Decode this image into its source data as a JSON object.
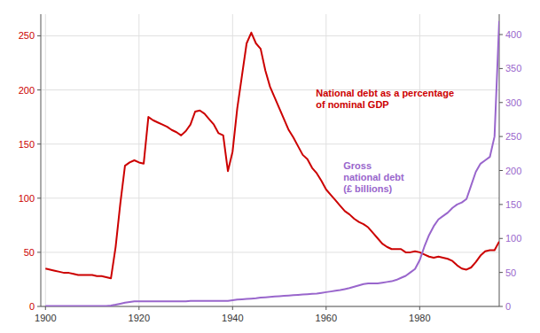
{
  "chart_data": {
    "type": "line",
    "x": [
      1900,
      1901,
      1902,
      1903,
      1904,
      1905,
      1906,
      1907,
      1908,
      1909,
      1910,
      1911,
      1912,
      1913,
      1914,
      1915,
      1916,
      1917,
      1918,
      1919,
      1920,
      1921,
      1922,
      1923,
      1924,
      1925,
      1926,
      1927,
      1928,
      1929,
      1930,
      1931,
      1932,
      1933,
      1934,
      1935,
      1936,
      1937,
      1938,
      1939,
      1940,
      1941,
      1942,
      1943,
      1944,
      1945,
      1946,
      1947,
      1948,
      1949,
      1950,
      1951,
      1952,
      1953,
      1954,
      1955,
      1956,
      1957,
      1958,
      1959,
      1960,
      1961,
      1962,
      1963,
      1964,
      1965,
      1966,
      1967,
      1968,
      1969,
      1970,
      1971,
      1972,
      1973,
      1974,
      1975,
      1976,
      1977,
      1978,
      1979,
      1980,
      1981,
      1982,
      1983,
      1984,
      1985,
      1986,
      1987,
      1988,
      1989,
      1990,
      1991,
      1992,
      1993,
      1994,
      1995,
      1996,
      1997
    ],
    "xlim": [
      1899,
      1997
    ],
    "xticks": [
      1900,
      1920,
      1940,
      1960,
      1980
    ],
    "ylim": [
      0,
      270
    ],
    "yticks": [
      0,
      50,
      100,
      150,
      200,
      250
    ],
    "y2lim": [
      0,
      430
    ],
    "y2ticks": [
      0,
      50,
      100,
      150,
      200,
      250,
      300,
      350,
      400
    ],
    "grid": true,
    "series": [
      {
        "color": "#cc0000",
        "values": [
          35,
          34,
          33,
          32,
          31,
          31,
          30,
          29,
          29,
          29,
          29,
          28,
          28,
          27,
          26,
          55,
          95,
          130,
          133,
          135,
          133,
          132,
          175,
          172,
          170,
          168,
          166,
          163,
          161,
          158,
          162,
          168,
          180,
          181,
          178,
          173,
          168,
          160,
          158,
          125,
          143,
          183,
          213,
          243,
          253,
          243,
          238,
          218,
          203,
          193,
          183,
          173,
          163,
          156,
          148,
          140,
          136,
          128,
          123,
          116,
          108,
          103,
          98,
          93,
          88,
          85,
          81,
          78,
          76,
          73,
          68,
          63,
          58,
          55,
          53,
          53,
          53,
          50,
          50,
          51,
          50,
          48,
          46,
          45,
          46,
          45,
          44,
          42,
          38,
          35,
          34,
          36,
          41,
          47,
          51,
          52,
          52,
          60
        ]
      },
      {
        "color": "#9966cc",
        "axis": "y2",
        "values": [
          0.6,
          0.6,
          0.7,
          0.7,
          0.7,
          0.7,
          0.7,
          0.7,
          0.7,
          0.7,
          0.7,
          0.7,
          0.7,
          0.7,
          1.2,
          2.5,
          4.0,
          5.5,
          6.5,
          7.5,
          7.5,
          7.5,
          7.5,
          7.5,
          7.5,
          7.5,
          7.5,
          7.5,
          7.5,
          7.5,
          7.5,
          8.0,
          8.0,
          8.0,
          8.0,
          8.0,
          8.0,
          8.0,
          8.0,
          8.0,
          9.0,
          10.0,
          10.5,
          11.0,
          11.5,
          12.0,
          13.0,
          13.5,
          14.0,
          14.5,
          15.0,
          15.5,
          16.0,
          16.5,
          17.0,
          17.5,
          18.0,
          18.5,
          19.0,
          20.0,
          21.0,
          22.0,
          23.0,
          24.0,
          25.5,
          27.0,
          29.0,
          31.0,
          33.0,
          34.0,
          34.0,
          34.0,
          35.0,
          36.0,
          37.0,
          39.0,
          42.0,
          45.0,
          50.0,
          55.0,
          68.0,
          88.0,
          105.0,
          118.0,
          128.0,
          133.0,
          138.0,
          145.0,
          150.0,
          153.0,
          158.0,
          178.0,
          198.0,
          210.0,
          215.0,
          220.0,
          250.0,
          420.0
        ]
      }
    ],
    "annotations": [
      {
        "text": "National debt as a percentage\nof nominal GDP",
        "color": "#cc0000"
      },
      {
        "text": "Gross\nnational debt\n(£ billions)",
        "color": "#9966cc"
      }
    ]
  }
}
